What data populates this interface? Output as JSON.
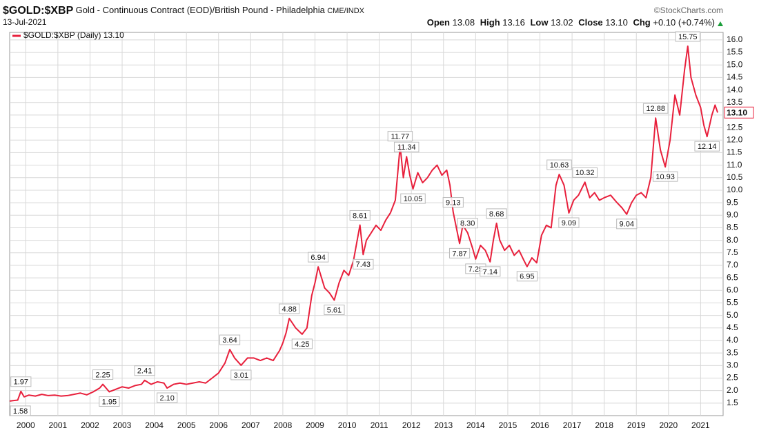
{
  "chart_data": {
    "type": "line",
    "title": "$GOLD:$XBP",
    "subtitle": "Gold - Continuous Contract (EOD)/British Pound - Philadelphia",
    "exchange": "CME/INDX",
    "source": "©StockCharts.com",
    "date": "13-Jul-2021",
    "quote": {
      "open_label": "Open",
      "open": "13.08",
      "high_label": "High",
      "high": "13.16",
      "low_label": "Low",
      "low": "13.02",
      "close_label": "Close",
      "close": "13.10",
      "chg_label": "Chg",
      "chg": "+0.10 (+0.74%)"
    },
    "x": [
      1999.5,
      1999.6,
      1999.75,
      1999.85,
      1999.95,
      2000.1,
      2000.3,
      2000.5,
      2000.7,
      2000.9,
      2001.1,
      2001.3,
      2001.5,
      2001.7,
      2001.9,
      2002.1,
      2002.3,
      2002.4,
      2002.6,
      2002.8,
      2003.0,
      2003.2,
      2003.4,
      2003.6,
      2003.7,
      2003.9,
      2004.1,
      2004.3,
      2004.4,
      2004.6,
      2004.8,
      2005.0,
      2005.2,
      2005.4,
      2005.6,
      2005.8,
      2006.0,
      2006.2,
      2006.35,
      2006.5,
      2006.7,
      2006.9,
      2007.1,
      2007.3,
      2007.5,
      2007.7,
      2007.9,
      2008.0,
      2008.1,
      2008.2,
      2008.4,
      2008.6,
      2008.75,
      2008.9,
      2009.0,
      2009.1,
      2009.3,
      2009.45,
      2009.6,
      2009.75,
      2009.9,
      2010.05,
      2010.2,
      2010.4,
      2010.5,
      2010.6,
      2010.75,
      2010.9,
      2011.05,
      2011.2,
      2011.35,
      2011.5,
      2011.65,
      2011.75,
      2011.85,
      2011.95,
      2012.05,
      2012.2,
      2012.35,
      2012.5,
      2012.65,
      2012.8,
      2012.95,
      2013.1,
      2013.2,
      2013.3,
      2013.4,
      2013.5,
      2013.6,
      2013.75,
      2013.9,
      2014.0,
      2014.15,
      2014.3,
      2014.45,
      2014.55,
      2014.65,
      2014.75,
      2014.9,
      2015.05,
      2015.2,
      2015.35,
      2015.5,
      2015.6,
      2015.75,
      2015.9,
      2016.05,
      2016.2,
      2016.35,
      2016.5,
      2016.6,
      2016.75,
      2016.9,
      2017.05,
      2017.2,
      2017.4,
      2017.55,
      2017.7,
      2017.85,
      2018.0,
      2018.2,
      2018.4,
      2018.55,
      2018.7,
      2018.85,
      2019.0,
      2019.15,
      2019.3,
      2019.45,
      2019.6,
      2019.75,
      2019.9,
      2020.05,
      2020.2,
      2020.35,
      2020.5,
      2020.6,
      2020.7,
      2020.85,
      2021.0,
      2021.1,
      2021.2,
      2021.35,
      2021.45,
      2021.53
    ],
    "series": [
      {
        "name": "$GOLD:$XBP (Daily) 13.10",
        "color": "#e8203c",
        "values": [
          1.58,
          1.6,
          1.62,
          1.97,
          1.75,
          1.82,
          1.78,
          1.85,
          1.8,
          1.82,
          1.78,
          1.8,
          1.85,
          1.9,
          1.83,
          1.95,
          2.1,
          2.25,
          1.95,
          2.05,
          2.15,
          2.1,
          2.2,
          2.25,
          2.41,
          2.25,
          2.35,
          2.3,
          2.1,
          2.25,
          2.3,
          2.25,
          2.3,
          2.35,
          2.3,
          2.5,
          2.7,
          3.1,
          3.64,
          3.3,
          3.01,
          3.3,
          3.3,
          3.2,
          3.3,
          3.2,
          3.6,
          3.9,
          4.3,
          4.88,
          4.5,
          4.25,
          4.5,
          5.8,
          6.3,
          6.94,
          6.1,
          5.9,
          5.61,
          6.3,
          6.8,
          6.6,
          7.2,
          8.61,
          7.43,
          8.0,
          8.3,
          8.6,
          8.4,
          8.8,
          9.1,
          9.6,
          11.77,
          10.5,
          11.34,
          10.6,
          10.05,
          10.7,
          10.3,
          10.5,
          10.8,
          11.0,
          10.6,
          10.8,
          10.2,
          9.13,
          8.5,
          7.87,
          8.6,
          8.3,
          7.7,
          7.25,
          7.8,
          7.6,
          7.14,
          8.0,
          8.68,
          8.0,
          7.6,
          7.8,
          7.4,
          7.6,
          7.2,
          6.95,
          7.3,
          7.1,
          8.2,
          8.6,
          8.5,
          10.2,
          10.63,
          10.2,
          9.09,
          9.6,
          9.8,
          10.32,
          9.7,
          9.9,
          9.6,
          9.7,
          9.8,
          9.5,
          9.3,
          9.04,
          9.5,
          9.8,
          9.9,
          9.7,
          10.5,
          12.88,
          11.6,
          10.93,
          12.0,
          13.8,
          13.0,
          14.8,
          15.75,
          14.5,
          13.8,
          13.3,
          12.6,
          12.14,
          13.0,
          13.4,
          13.1
        ]
      }
    ],
    "annotations": {
      "x": [
        1999.5,
        1999.85,
        2002.4,
        2002.6,
        2003.7,
        2004.4,
        2006.35,
        2006.7,
        2008.2,
        2008.6,
        2009.1,
        2009.6,
        2010.4,
        2010.5,
        2011.65,
        2011.85,
        2012.05,
        2013.3,
        2013.5,
        2013.75,
        2014.0,
        2014.45,
        2014.65,
        2015.6,
        2016.6,
        2016.9,
        2017.4,
        2018.7,
        2019.6,
        2019.9,
        2020.6,
        2021.2
      ],
      "values": [
        1.58,
        1.97,
        2.25,
        1.95,
        2.41,
        2.1,
        3.64,
        3.01,
        4.88,
        4.25,
        6.94,
        5.61,
        8.61,
        7.43,
        11.77,
        11.34,
        10.05,
        9.13,
        7.87,
        8.3,
        7.25,
        7.14,
        8.68,
        6.95,
        10.63,
        9.09,
        10.32,
        9.04,
        12.88,
        10.93,
        15.75,
        12.14
      ],
      "value_labels": [
        "1.58",
        "1.97",
        "2.25",
        "1.95",
        "2.41",
        "2.10",
        "3.64",
        "3.01",
        "4.88",
        "4.25",
        "6.94",
        "5.61",
        "8.61",
        "7.43",
        "11.77",
        "11.34",
        "10.05",
        "9.13",
        "7.87",
        "8.30",
        "7.25",
        "7.14",
        "8.68",
        "6.95",
        "10.63",
        "9.09",
        "10.32",
        "9.04",
        "12.88",
        "10.93",
        "15.75",
        "12.14"
      ]
    },
    "last_value": 13.1,
    "last_value_label": "13.10",
    "xlim": [
      1999.5,
      2021.7
    ],
    "xticks": [
      2000,
      2001,
      2002,
      2003,
      2004,
      2005,
      2006,
      2007,
      2008,
      2009,
      2010,
      2011,
      2012,
      2013,
      2014,
      2015,
      2016,
      2017,
      2018,
      2019,
      2020,
      2021
    ],
    "ylim": [
      1.0,
      16.3
    ],
    "yticks": [
      1.5,
      {
        "value": 2,
        "label": "2.0"
      },
      2.5,
      {
        "value": 3,
        "label": "3.0"
      },
      3.5,
      {
        "value": 4,
        "label": "4.0"
      },
      4.5,
      {
        "value": 5,
        "label": "5.0"
      },
      5.5,
      {
        "value": 6,
        "label": "6.0"
      },
      6.5,
      {
        "value": 7,
        "label": "7.0"
      },
      7.5,
      {
        "value": 8,
        "label": "8.0"
      },
      8.5,
      {
        "value": 9,
        "label": "9.0"
      },
      9.5,
      {
        "value": 10,
        "label": "10.0"
      },
      10.5,
      {
        "value": 11,
        "label": "11.0"
      },
      11.5,
      {
        "value": 12,
        "label": "12.0"
      },
      12.5,
      {
        "value": 13,
        "label": "13.0"
      },
      13.5,
      {
        "value": 14,
        "label": "14.0"
      },
      14.5,
      {
        "value": 15,
        "label": "15.0"
      },
      15.5,
      {
        "value": 16,
        "label": "16.0"
      }
    ],
    "grid": true
  }
}
